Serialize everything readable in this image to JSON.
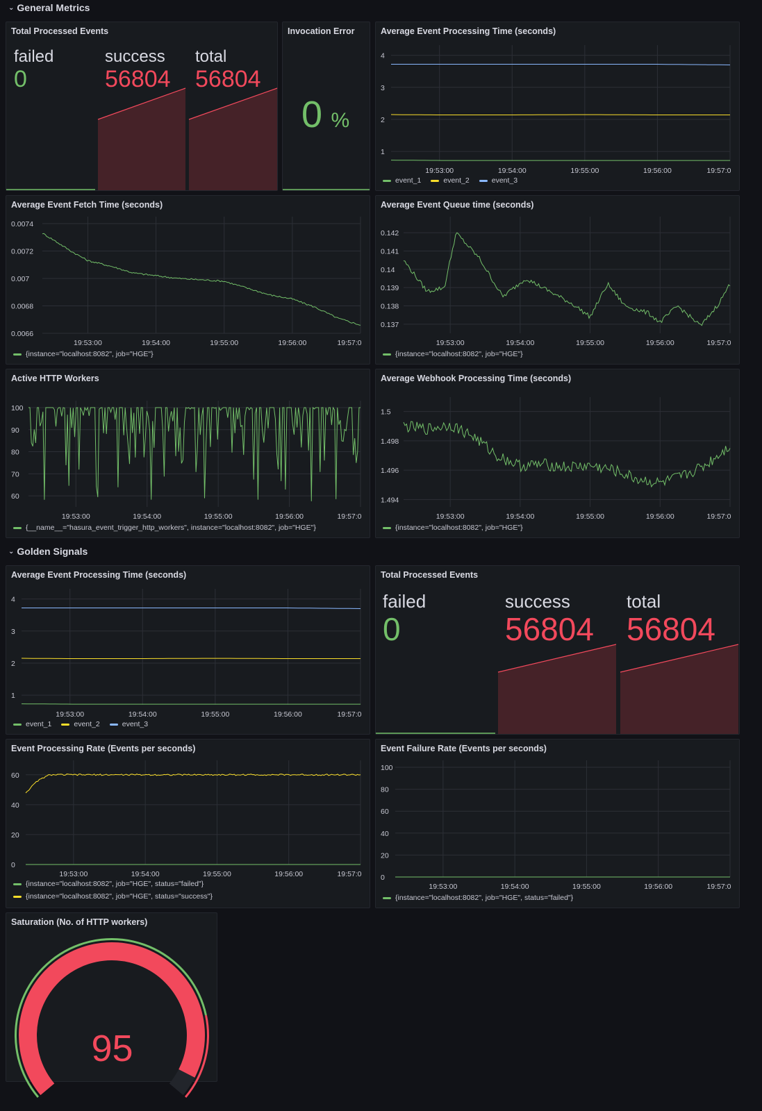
{
  "rows": [
    {
      "label": "General Metrics"
    },
    {
      "label": "Golden Signals"
    }
  ],
  "colors": {
    "green": "#73bf69",
    "yellow": "#fade2a",
    "blue": "#8ab8ff",
    "red": "#f2495c",
    "redfill": "#452228",
    "grid": "#2c2f36"
  },
  "time_ticks": [
    "19:53:00",
    "19:54:00",
    "19:55:00",
    "19:56:00",
    "19:57:0"
  ],
  "panels": {
    "total_processed_1": {
      "title": "Total Processed Events",
      "stats": [
        {
          "label": "failed",
          "value": "0"
        },
        {
          "label": "success",
          "value": "56804"
        },
        {
          "label": "total",
          "value": "56804"
        }
      ]
    },
    "invocation_error": {
      "title": "Invocation Error",
      "value": "0",
      "unit": "%"
    },
    "avg_proc_time_1": {
      "title": "Average Event Processing Time (seconds)",
      "legend": [
        "event_1",
        "event_2",
        "event_3"
      ]
    },
    "avg_fetch_time": {
      "title": "Average Event Fetch Time (seconds)",
      "legend": [
        "{instance=\"localhost:8082\", job=\"HGE\"}"
      ]
    },
    "avg_queue_time": {
      "title": "Average Event Queue time (seconds)",
      "legend": [
        "{instance=\"localhost:8082\", job=\"HGE\"}"
      ]
    },
    "active_http_workers": {
      "title": "Active HTTP Workers",
      "legend": [
        "{__name__=\"hasura_event_trigger_http_workers\", instance=\"localhost:8082\", job=\"HGE\"}"
      ]
    },
    "avg_webhook_time": {
      "title": "Average Webhook Processing Time (seconds)",
      "legend": [
        "{instance=\"localhost:8082\", job=\"HGE\"}"
      ]
    },
    "avg_proc_time_2": {
      "title": "Average Event Processing Time (seconds)",
      "legend": [
        "event_1",
        "event_2",
        "event_3"
      ]
    },
    "total_processed_2": {
      "title": "Total Processed Events",
      "stats": [
        {
          "label": "failed",
          "value": "0"
        },
        {
          "label": "success",
          "value": "56804"
        },
        {
          "label": "total",
          "value": "56804"
        }
      ]
    },
    "proc_rate": {
      "title": "Event Processing Rate (Events per seconds)",
      "legend": [
        "{instance=\"localhost:8082\", job=\"HGE\", status=\"failed\"}",
        "{instance=\"localhost:8082\", job=\"HGE\", status=\"success\"}"
      ]
    },
    "failure_rate": {
      "title": "Event Failure Rate (Events per seconds)",
      "legend": [
        "{instance=\"localhost:8082\", job=\"HGE\", status=\"failed\"}"
      ]
    },
    "saturation": {
      "title": "Saturation (No. of HTTP workers)",
      "value": "95",
      "fraction": 0.95
    }
  },
  "chart_data": [
    {
      "id": "avg_proc_time_1",
      "type": "line",
      "x": [
        "19:52:20",
        "19:53:00",
        "19:54:00",
        "19:55:00",
        "19:56:00",
        "19:57:00"
      ],
      "yticks": [
        "1",
        "2",
        "3",
        "4"
      ],
      "ylim": [
        0.7,
        4.1
      ],
      "series": [
        {
          "name": "event_1",
          "values": [
            0.73,
            0.72,
            0.72,
            0.72,
            0.72,
            0.72
          ]
        },
        {
          "name": "event_2",
          "values": [
            2.15,
            2.14,
            2.14,
            2.15,
            2.14,
            2.14
          ]
        },
        {
          "name": "event_3",
          "values": [
            3.72,
            3.72,
            3.72,
            3.72,
            3.72,
            3.7
          ]
        }
      ]
    },
    {
      "id": "avg_fetch_time",
      "type": "line",
      "x": [
        "19:52:20",
        "19:52:30",
        "19:52:45",
        "19:53:00",
        "19:53:20",
        "19:53:40",
        "19:54:00",
        "19:54:20",
        "19:54:40",
        "19:55:00",
        "19:55:20",
        "19:55:40",
        "19:56:00",
        "19:56:20",
        "19:56:40",
        "19:57:00"
      ],
      "yticks": [
        "0.0066",
        "0.0068",
        "0.007",
        "0.0072",
        "0.0074"
      ],
      "ylim": [
        0.0066,
        0.0074
      ],
      "series": [
        {
          "values": [
            0.00733,
            0.00728,
            0.0072,
            0.00713,
            0.00709,
            0.00704,
            0.00702,
            0.007,
            0.00699,
            0.00698,
            0.00693,
            0.00688,
            0.00685,
            0.00679,
            0.00671,
            0.00666
          ]
        }
      ]
    },
    {
      "id": "avg_queue_time",
      "type": "line",
      "x": [
        "19:52:20",
        "19:52:40",
        "19:52:55",
        "19:53:05",
        "19:53:25",
        "19:53:45",
        "19:54:05",
        "19:54:25",
        "19:54:45",
        "19:55:00",
        "19:55:15",
        "19:55:30",
        "19:55:50",
        "19:56:00",
        "19:56:15",
        "19:56:35",
        "19:56:50",
        "19:57:00"
      ],
      "yticks": [
        "0.137",
        "0.138",
        "0.139",
        "0.14",
        "0.141",
        "0.142"
      ],
      "ylim": [
        0.1365,
        0.1425
      ],
      "series": [
        {
          "values": [
            0.1405,
            0.1388,
            0.139,
            0.142,
            0.1406,
            0.1385,
            0.1395,
            0.1388,
            0.1381,
            0.1374,
            0.1392,
            0.138,
            0.1376,
            0.1371,
            0.138,
            0.1369,
            0.1381,
            0.1392
          ]
        }
      ]
    },
    {
      "id": "active_http_workers",
      "type": "line",
      "x": [
        "19:52:20",
        "19:57:00"
      ],
      "yticks": [
        "60",
        "70",
        "80",
        "90",
        "100"
      ],
      "ylim": [
        55,
        100
      ],
      "series": [
        {
          "values": [
            100,
            56
          ]
        }
      ]
    },
    {
      "id": "avg_webhook_time",
      "type": "line",
      "x": [
        "19:52:20",
        "19:52:40",
        "19:53:00",
        "19:53:20",
        "19:53:40",
        "19:54:00",
        "19:54:20",
        "19:54:40",
        "19:55:00",
        "19:55:20",
        "19:55:40",
        "19:56:00",
        "19:56:20",
        "19:56:40",
        "19:57:00"
      ],
      "yticks": [
        "1.494",
        "1.496",
        "1.498",
        "1.5"
      ],
      "ylim": [
        1.4935,
        1.5005
      ],
      "series": [
        {
          "values": [
            1.499,
            1.4988,
            1.4991,
            1.4983,
            1.497,
            1.4963,
            1.4964,
            1.4962,
            1.4963,
            1.496,
            1.4954,
            1.4951,
            1.4956,
            1.4964,
            1.4977
          ]
        }
      ]
    },
    {
      "id": "avg_proc_time_2",
      "type": "line",
      "x": [
        "19:52:20",
        "19:53:00",
        "19:54:00",
        "19:55:00",
        "19:56:00",
        "19:57:00"
      ],
      "yticks": [
        "1",
        "2",
        "3",
        "4"
      ],
      "ylim": [
        0.7,
        4.1
      ],
      "series": [
        {
          "name": "event_1",
          "values": [
            0.73,
            0.72,
            0.72,
            0.72,
            0.72,
            0.72
          ]
        },
        {
          "name": "event_2",
          "values": [
            2.15,
            2.14,
            2.14,
            2.15,
            2.14,
            2.14
          ]
        },
        {
          "name": "event_3",
          "values": [
            3.72,
            3.72,
            3.72,
            3.72,
            3.72,
            3.7
          ]
        }
      ]
    },
    {
      "id": "proc_rate",
      "type": "line",
      "x": [
        "19:52:20",
        "19:52:30",
        "19:52:40",
        "19:53:00",
        "19:54:00",
        "19:55:00",
        "19:56:00",
        "19:57:00"
      ],
      "yticks": [
        "0",
        "20",
        "40",
        "60"
      ],
      "ylim": [
        0,
        65
      ],
      "series": [
        {
          "status": "failed",
          "values": [
            0,
            0,
            0,
            0,
            0,
            0,
            0,
            0
          ]
        },
        {
          "status": "success",
          "values": [
            48,
            56,
            60,
            60,
            60,
            60,
            60,
            60
          ]
        }
      ]
    },
    {
      "id": "failure_rate",
      "type": "line",
      "x": [
        "19:52:20",
        "19:57:00"
      ],
      "yticks": [
        "0",
        "20",
        "40",
        "60",
        "80",
        "100"
      ],
      "ylim": [
        0,
        100
      ],
      "series": [
        {
          "status": "failed",
          "values": [
            0,
            0
          ]
        }
      ]
    }
  ]
}
